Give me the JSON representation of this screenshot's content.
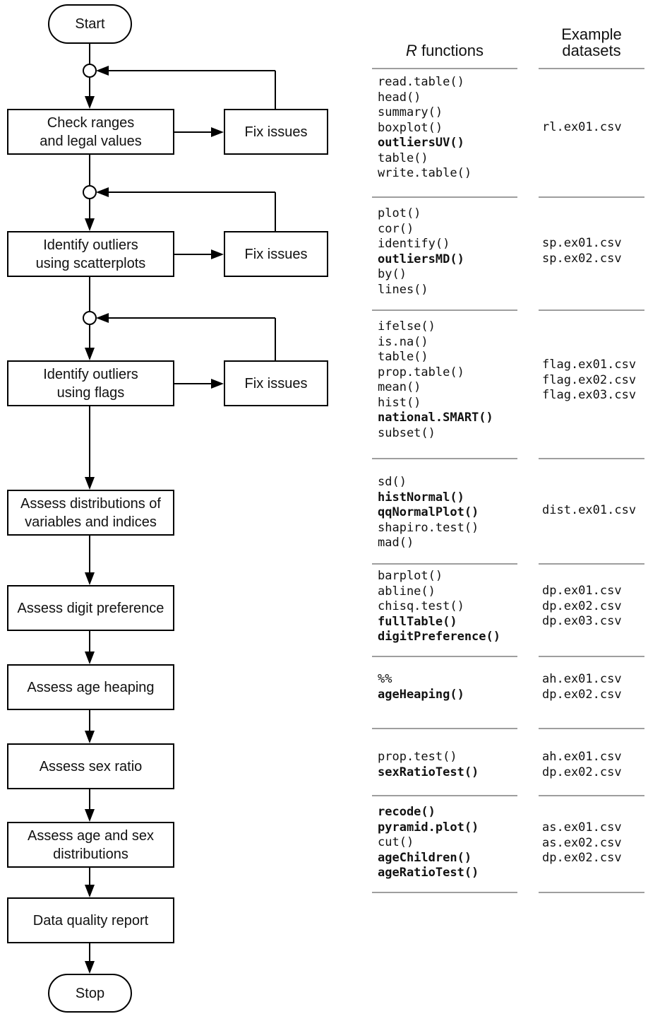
{
  "colors": {
    "ink": "#111111",
    "line": "#000000",
    "rule_gray": "#9e9e9e"
  },
  "flowchart": {
    "start_label": "Start",
    "stop_label": "Stop",
    "fix_issues_label": "Fix issues",
    "steps": [
      "Check ranges\nand legal values",
      "Identify outliers\nusing scatterplots",
      "Identify outliers\nusing flags",
      "Assess distributions of\nvariables and indices",
      "Assess digit preference",
      "Assess age heaping",
      "Assess sex ratio",
      "Assess age and sex\ndistributions",
      "Data quality report"
    ]
  },
  "panel": {
    "functions_header_r": "R",
    "functions_header_rest": "functions",
    "datasets_header": "Example\ndatasets",
    "sections": [
      {
        "functions": [
          {
            "name": "read.table()",
            "bold": false
          },
          {
            "name": "head()",
            "bold": false
          },
          {
            "name": "summary()",
            "bold": false
          },
          {
            "name": "boxplot()",
            "bold": false
          },
          {
            "name": "outliersUV()",
            "bold": true
          },
          {
            "name": "table()",
            "bold": false
          },
          {
            "name": "write.table()",
            "bold": false
          }
        ],
        "datasets": [
          "rl.ex01.csv"
        ]
      },
      {
        "functions": [
          {
            "name": "plot()",
            "bold": false
          },
          {
            "name": "cor()",
            "bold": false
          },
          {
            "name": "identify()",
            "bold": false
          },
          {
            "name": "outliersMD()",
            "bold": true
          },
          {
            "name": "by()",
            "bold": false
          },
          {
            "name": "lines()",
            "bold": false
          }
        ],
        "datasets": [
          "sp.ex01.csv",
          "sp.ex02.csv"
        ]
      },
      {
        "functions": [
          {
            "name": "ifelse()",
            "bold": false
          },
          {
            "name": "is.na()",
            "bold": false
          },
          {
            "name": "table()",
            "bold": false
          },
          {
            "name": "prop.table()",
            "bold": false
          },
          {
            "name": "mean()",
            "bold": false
          },
          {
            "name": "hist()",
            "bold": false
          },
          {
            "name": "national.SMART()",
            "bold": true
          },
          {
            "name": "subset()",
            "bold": false
          }
        ],
        "datasets": [
          "flag.ex01.csv",
          "flag.ex02.csv",
          "flag.ex03.csv"
        ]
      },
      {
        "functions": [
          {
            "name": "sd()",
            "bold": false
          },
          {
            "name": "histNormal()",
            "bold": true
          },
          {
            "name": "qqNormalPlot()",
            "bold": true
          },
          {
            "name": "shapiro.test()",
            "bold": false
          },
          {
            "name": "mad()",
            "bold": false
          }
        ],
        "datasets": [
          "dist.ex01.csv"
        ]
      },
      {
        "functions": [
          {
            "name": "barplot()",
            "bold": false
          },
          {
            "name": "abline()",
            "bold": false
          },
          {
            "name": "chisq.test()",
            "bold": false
          },
          {
            "name": "fullTable()",
            "bold": true
          },
          {
            "name": "digitPreference()",
            "bold": true
          }
        ],
        "datasets": [
          "dp.ex01.csv",
          "dp.ex02.csv",
          "dp.ex03.csv"
        ]
      },
      {
        "functions": [
          {
            "name": "%%",
            "bold": false
          },
          {
            "name": "ageHeaping()",
            "bold": true
          }
        ],
        "datasets": [
          "ah.ex01.csv",
          "dp.ex02.csv"
        ]
      },
      {
        "functions": [
          {
            "name": "prop.test()",
            "bold": false
          },
          {
            "name": "sexRatioTest()",
            "bold": true
          }
        ],
        "datasets": [
          "ah.ex01.csv",
          "dp.ex02.csv"
        ]
      },
      {
        "functions": [
          {
            "name": "recode()",
            "bold": true
          },
          {
            "name": "pyramid.plot()",
            "bold": true
          },
          {
            "name": "cut()",
            "bold": false
          },
          {
            "name": "ageChildren()",
            "bold": true
          },
          {
            "name": "ageRatioTest()",
            "bold": true
          }
        ],
        "datasets": [
          "as.ex01.csv",
          "as.ex02.csv",
          "dp.ex02.csv"
        ]
      }
    ]
  }
}
